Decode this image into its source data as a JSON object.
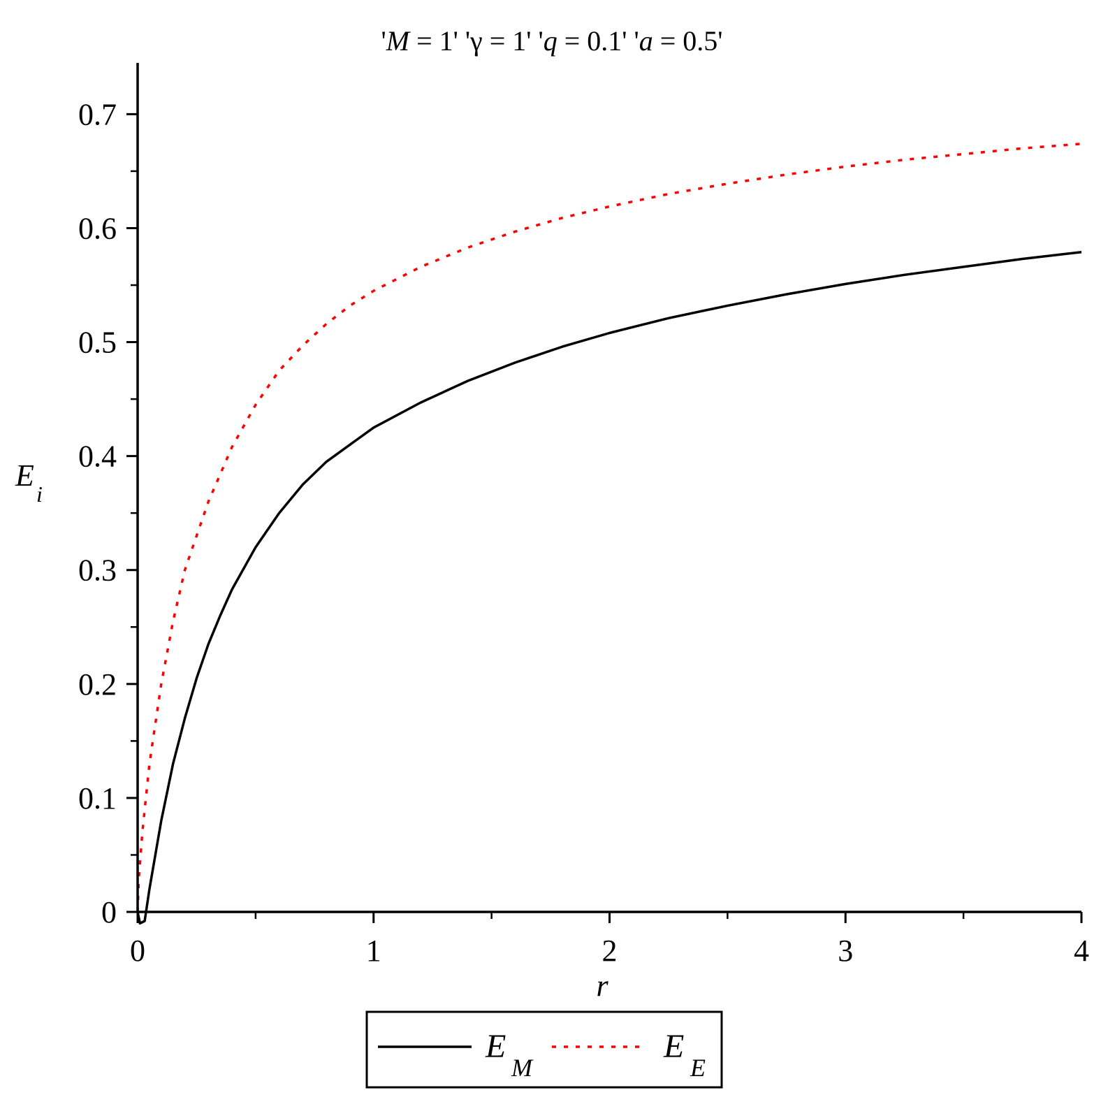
{
  "chart_data": {
    "type": "line",
    "title": "'M = 1' 'γ = 1' 'q = 0.1' 'a = 0.5'",
    "title_parts": [
      {
        "text": "'",
        "italic": false
      },
      {
        "text": "M",
        "italic": true
      },
      {
        "text": " = 1' 'γ = 1' '",
        "italic": false
      },
      {
        "text": "q",
        "italic": true
      },
      {
        "text": " = 0.1' '",
        "italic": false
      },
      {
        "text": "a",
        "italic": true
      },
      {
        "text": " = 0.5'",
        "italic": false
      }
    ],
    "xlabel": "r",
    "ylabel": {
      "main": "E",
      "sub": "i"
    },
    "xlim": [
      0,
      4
    ],
    "ylim": [
      0,
      0.745
    ],
    "x_ticks": [
      0,
      1,
      2,
      3,
      4
    ],
    "x_tick_labels": [
      "0",
      "1",
      "2",
      "3",
      "4"
    ],
    "x_minor_ticks": [
      0.5,
      1.5,
      2.5,
      3.5
    ],
    "y_ticks": [
      0,
      0.1,
      0.2,
      0.3,
      0.4,
      0.5,
      0.6,
      0.7
    ],
    "y_tick_labels": [
      "0",
      "0.1",
      "0.2",
      "0.3",
      "0.4",
      "0.5",
      "0.6",
      "0.7"
    ],
    "y_minor_ticks": [
      0.05,
      0.15,
      0.25,
      0.35,
      0.45,
      0.55,
      0.65
    ],
    "grid": false,
    "legend_position": "bottom",
    "series": [
      {
        "name": "E_M",
        "label_main": "E",
        "label_sub": "M",
        "color": "#000000",
        "style": "solid",
        "x": [
          0,
          0.01,
          0.03,
          0.05,
          0.1,
          0.15,
          0.2,
          0.25,
          0.3,
          0.35,
          0.4,
          0.5,
          0.6,
          0.7,
          0.8,
          0.9,
          1.0,
          1.2,
          1.4,
          1.6,
          1.8,
          2.0,
          2.25,
          2.5,
          2.75,
          3.0,
          3.25,
          3.5,
          3.75,
          4.0
        ],
        "y": [
          0,
          -0.01,
          -0.008,
          0.02,
          0.08,
          0.13,
          0.17,
          0.205,
          0.235,
          0.26,
          0.283,
          0.32,
          0.35,
          0.375,
          0.395,
          0.41,
          0.425,
          0.447,
          0.466,
          0.482,
          0.496,
          0.508,
          0.521,
          0.532,
          0.542,
          0.551,
          0.559,
          0.566,
          0.573,
          0.579
        ]
      },
      {
        "name": "E_E",
        "label_main": "E",
        "label_sub": "E",
        "color": "#ff0000",
        "style": "dotted",
        "x": [
          0,
          0.005,
          0.02,
          0.05,
          0.1,
          0.15,
          0.2,
          0.25,
          0.3,
          0.4,
          0.5,
          0.6,
          0.7,
          0.8,
          0.9,
          1.0,
          1.2,
          1.4,
          1.6,
          1.8,
          2.0,
          2.25,
          2.5,
          2.75,
          3.0,
          3.25,
          3.5,
          3.75,
          4.0
        ],
        "y": [
          0,
          0.03,
          0.07,
          0.13,
          0.2,
          0.255,
          0.3,
          0.33,
          0.36,
          0.408,
          0.445,
          0.475,
          0.497,
          0.516,
          0.532,
          0.545,
          0.566,
          0.583,
          0.597,
          0.609,
          0.619,
          0.63,
          0.639,
          0.647,
          0.654,
          0.66,
          0.665,
          0.67,
          0.674
        ]
      }
    ]
  }
}
